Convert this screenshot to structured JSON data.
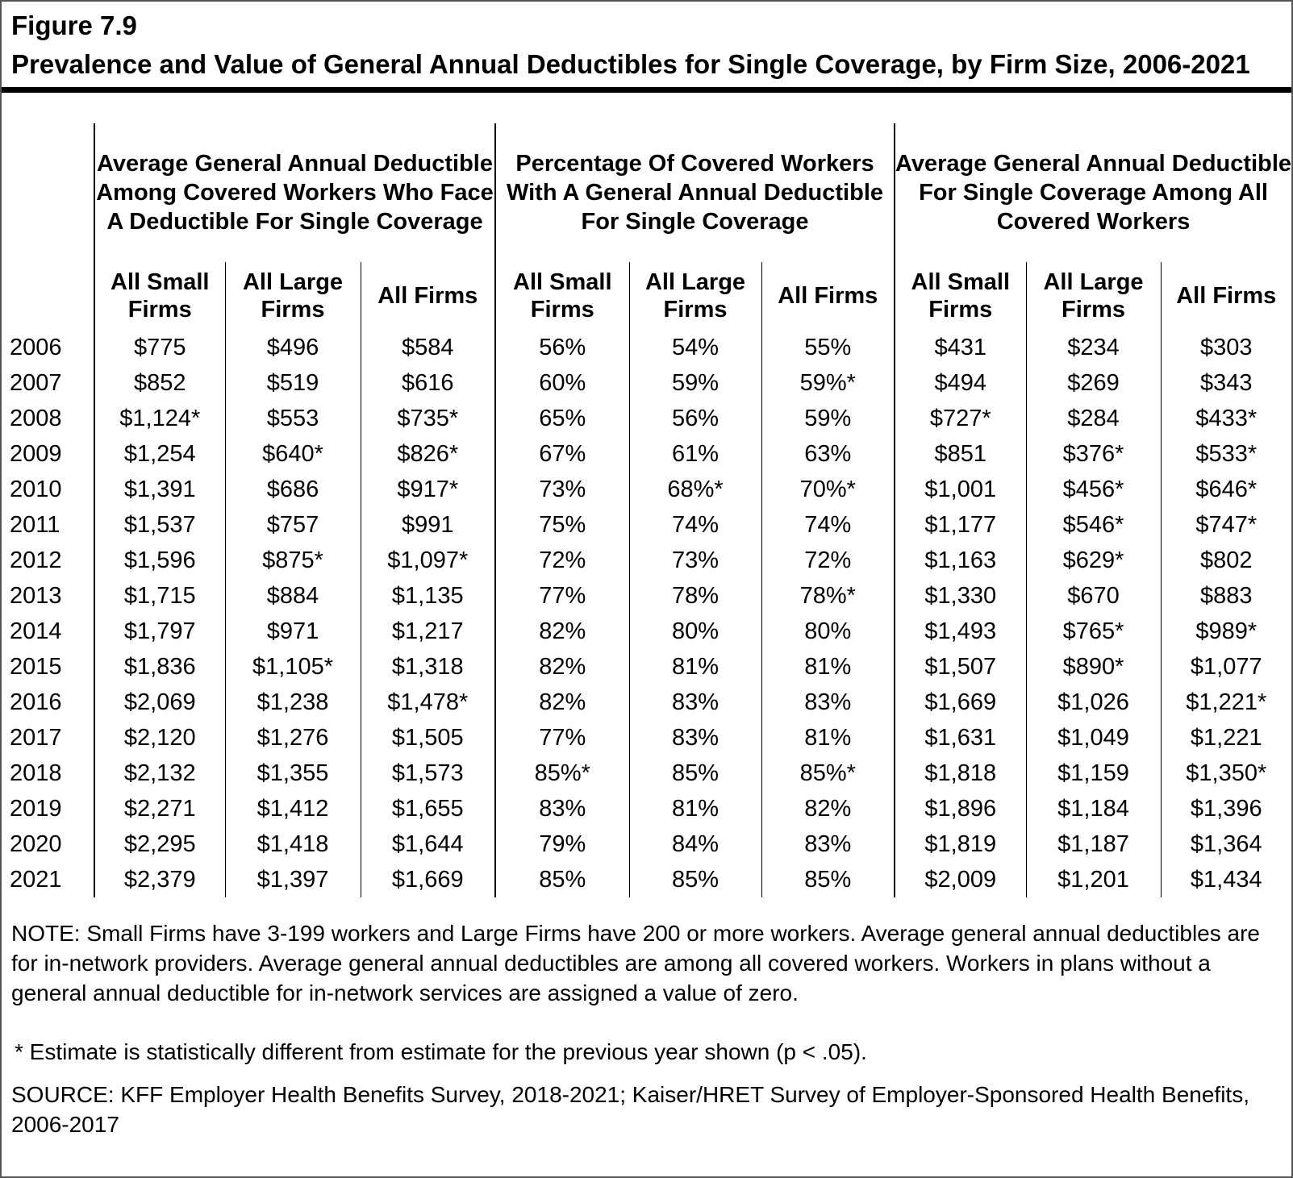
{
  "figure": {
    "label": "Figure 7.9",
    "title": "Prevalence and Value of General Annual Deductibles for Single Coverage, by Firm Size, 2006-2021"
  },
  "table": {
    "groups": [
      {
        "title": "Average General Annual Deductible Among Covered Workers Who Face A Deductible For Single Coverage",
        "columns": [
          "All Small Firms",
          "All Large Firms",
          "All Firms"
        ]
      },
      {
        "title": "Percentage Of Covered Workers With A General Annual Deductible For Single Coverage",
        "columns": [
          "All Small Firms",
          "All Large Firms",
          "All Firms"
        ]
      },
      {
        "title": "Average General Annual Deductible For Single Coverage Among All Covered Workers",
        "columns": [
          "All Small Firms",
          "All Large Firms",
          "All Firms"
        ]
      }
    ],
    "rows": [
      {
        "year": "2006",
        "values": [
          "$775",
          "$496",
          "$584",
          "56%",
          "54%",
          "55%",
          "$431",
          "$234",
          "$303"
        ]
      },
      {
        "year": "2007",
        "values": [
          "$852",
          "$519",
          "$616",
          "60%",
          "59%",
          "59%*",
          "$494",
          "$269",
          "$343"
        ]
      },
      {
        "year": "2008",
        "values": [
          "$1,124*",
          "$553",
          "$735*",
          "65%",
          "56%",
          "59%",
          "$727*",
          "$284",
          "$433*"
        ]
      },
      {
        "year": "2009",
        "values": [
          "$1,254",
          "$640*",
          "$826*",
          "67%",
          "61%",
          "63%",
          "$851",
          "$376*",
          "$533*"
        ]
      },
      {
        "year": "2010",
        "values": [
          "$1,391",
          "$686",
          "$917*",
          "73%",
          "68%*",
          "70%*",
          "$1,001",
          "$456*",
          "$646*"
        ]
      },
      {
        "year": "2011",
        "values": [
          "$1,537",
          "$757",
          "$991",
          "75%",
          "74%",
          "74%",
          "$1,177",
          "$546*",
          "$747*"
        ]
      },
      {
        "year": "2012",
        "values": [
          "$1,596",
          "$875*",
          "$1,097*",
          "72%",
          "73%",
          "72%",
          "$1,163",
          "$629*",
          "$802"
        ]
      },
      {
        "year": "2013",
        "values": [
          "$1,715",
          "$884",
          "$1,135",
          "77%",
          "78%",
          "78%*",
          "$1,330",
          "$670",
          "$883"
        ]
      },
      {
        "year": "2014",
        "values": [
          "$1,797",
          "$971",
          "$1,217",
          "82%",
          "80%",
          "80%",
          "$1,493",
          "$765*",
          "$989*"
        ]
      },
      {
        "year": "2015",
        "values": [
          "$1,836",
          "$1,105*",
          "$1,318",
          "82%",
          "81%",
          "81%",
          "$1,507",
          "$890*",
          "$1,077"
        ]
      },
      {
        "year": "2016",
        "values": [
          "$2,069",
          "$1,238",
          "$1,478*",
          "82%",
          "83%",
          "83%",
          "$1,669",
          "$1,026",
          "$1,221*"
        ]
      },
      {
        "year": "2017",
        "values": [
          "$2,120",
          "$1,276",
          "$1,505",
          "77%",
          "83%",
          "81%",
          "$1,631",
          "$1,049",
          "$1,221"
        ]
      },
      {
        "year": "2018",
        "values": [
          "$2,132",
          "$1,355",
          "$1,573",
          "85%*",
          "85%",
          "85%*",
          "$1,818",
          "$1,159",
          "$1,350*"
        ]
      },
      {
        "year": "2019",
        "values": [
          "$2,271",
          "$1,412",
          "$1,655",
          "83%",
          "81%",
          "82%",
          "$1,896",
          "$1,184",
          "$1,396"
        ]
      },
      {
        "year": "2020",
        "values": [
          "$2,295",
          "$1,418",
          "$1,644",
          "79%",
          "84%",
          "83%",
          "$1,819",
          "$1,187",
          "$1,364"
        ]
      },
      {
        "year": "2021",
        "values": [
          "$2,379",
          "$1,397",
          "$1,669",
          "85%",
          "85%",
          "85%",
          "$2,009",
          "$1,201",
          "$1,434"
        ]
      }
    ]
  },
  "notes": {
    "note": "NOTE: Small Firms have 3-199 workers and Large Firms have 200 or more workers. Average general annual deductibles are for in-network providers. Average general annual deductibles are among all covered workers. Workers in plans without a general annual deductible for in-network services are assigned a value of zero.",
    "asterisk": "* Estimate is statistically different from estimate for the previous year shown (p < .05).",
    "source": "SOURCE: KFF Employer Health Benefits Survey, 2018-2021; Kaiser/HRET Survey of Employer-Sponsored Health Benefits, 2006-2017"
  },
  "colors": {
    "text": "#000000",
    "line": "#000000",
    "frame": "#555555",
    "background": "#ffffff"
  }
}
